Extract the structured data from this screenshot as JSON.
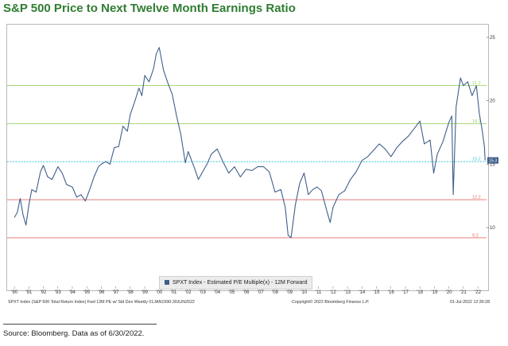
{
  "title": "S&P 500 Price to Next Twelve Month Earnings Ratio",
  "source": "Source: Bloomberg. Data as of 6/30/2022.",
  "footer": {
    "left": "SPXT Index (S&P 500 Total Return Index) Fwd 12M PE w/ Std Dev  Weekly 01JAN1990-30JUN2022",
    "center": "Copyright© 2022 Bloomberg Finance L.P.",
    "right": "01-Jul-2022 12:36:28"
  },
  "colors": {
    "series": "#3f5f8a",
    "green": "#9bd36a",
    "red": "#e46b6b",
    "cyan": "#3cc6d8",
    "title": "#2f7d32"
  },
  "chart_data": {
    "type": "line",
    "title": "S&P 500 Price to Next Twelve Month Earnings Ratio",
    "legend": "SPXT Index - Estimated P/E Multiple(x) - 12M Forward",
    "legend_position": "bottom-center",
    "grid": false,
    "xlim": [
      1989.5,
      2022.6
    ],
    "ylim": [
      6.5,
      26
    ],
    "x_tick_labels": [
      "'90",
      "'91",
      "'92",
      "'93",
      "'94",
      "'95",
      "'96",
      "'97",
      "'98",
      "'99",
      "'00",
      "'01",
      "'02",
      "'03",
      "'04",
      "'05",
      "'06",
      "'07",
      "'08",
      "'09",
      "'10",
      "'11",
      "'12",
      "'13",
      "'14",
      "'15",
      "'16",
      "'17",
      "'18",
      "'19",
      "'20",
      "'21",
      "'22"
    ],
    "x_tick_values": [
      1990,
      1991,
      1992,
      1993,
      1994,
      1995,
      1996,
      1997,
      1998,
      1999,
      2000,
      2001,
      2002,
      2003,
      2004,
      2005,
      2006,
      2007,
      2008,
      2009,
      2010,
      2011,
      2012,
      2013,
      2014,
      2015,
      2016,
      2017,
      2018,
      2019,
      2020,
      2021,
      2022
    ],
    "y_tick_labels": [
      "10",
      "15",
      "20",
      "25"
    ],
    "y_tick_values": [
      10,
      15,
      20,
      25
    ],
    "reference_lines": [
      {
        "value": 21.2,
        "label": "21.2",
        "color": "green"
      },
      {
        "value": 18.2,
        "label": "18.2",
        "color": "green"
      },
      {
        "value": 15.2,
        "label": "15.2",
        "color": "cyan"
      },
      {
        "value": 12.2,
        "label": "12.2",
        "color": "red"
      },
      {
        "value": 9.2,
        "label": "9.2",
        "color": "red"
      }
    ],
    "last_value_label": "15.3",
    "last_value": 15.3,
    "series": [
      {
        "name": "SPXT Index - Estimated P/E Multiple(x) - 12M Forward",
        "x": [
          1990.0,
          1990.2,
          1990.4,
          1990.6,
          1990.8,
          1991.0,
          1991.2,
          1991.5,
          1991.8,
          1992.0,
          1992.3,
          1992.6,
          1993.0,
          1993.3,
          1993.6,
          1994.0,
          1994.3,
          1994.6,
          1994.9,
          1995.2,
          1995.5,
          1995.8,
          1996.0,
          1996.3,
          1996.6,
          1996.9,
          1997.2,
          1997.5,
          1997.8,
          1998.0,
          1998.3,
          1998.6,
          1998.8,
          1999.0,
          1999.3,
          1999.6,
          1999.8,
          2000.0,
          2000.3,
          2000.6,
          2000.9,
          2001.2,
          2001.5,
          2001.8,
          2002.0,
          2002.4,
          2002.7,
          2003.0,
          2003.3,
          2003.6,
          2004.0,
          2004.4,
          2004.8,
          2005.2,
          2005.6,
          2006.0,
          2006.4,
          2006.8,
          2007.2,
          2007.6,
          2008.0,
          2008.4,
          2008.7,
          2008.9,
          2009.1,
          2009.4,
          2009.7,
          2010.0,
          2010.3,
          2010.6,
          2010.9,
          2011.2,
          2011.6,
          2011.8,
          2012.0,
          2012.4,
          2012.8,
          2013.2,
          2013.6,
          2014.0,
          2014.4,
          2014.8,
          2015.2,
          2015.6,
          2016.0,
          2016.4,
          2016.8,
          2017.2,
          2017.6,
          2018.0,
          2018.3,
          2018.7,
          2018.95,
          2019.2,
          2019.6,
          2020.0,
          2020.2,
          2020.3,
          2020.5,
          2020.8,
          2021.0,
          2021.3,
          2021.6,
          2021.9,
          2022.1,
          2022.3,
          2022.45,
          2022.5
        ],
        "y": [
          10.8,
          11.2,
          12.3,
          11.0,
          10.2,
          11.8,
          13.0,
          12.8,
          14.4,
          14.9,
          14.0,
          13.8,
          14.8,
          14.3,
          13.4,
          13.2,
          12.4,
          12.6,
          12.1,
          13.0,
          14.0,
          14.8,
          15.0,
          15.2,
          15.0,
          16.3,
          16.4,
          18.0,
          17.6,
          18.9,
          19.9,
          21.0,
          20.4,
          22.0,
          21.5,
          22.5,
          23.7,
          24.2,
          22.4,
          21.4,
          20.5,
          18.8,
          17.3,
          15.1,
          16.0,
          14.8,
          13.8,
          14.4,
          15.0,
          15.8,
          16.2,
          15.2,
          14.3,
          14.8,
          14.0,
          14.6,
          14.5,
          14.8,
          14.8,
          14.4,
          12.8,
          13.0,
          11.6,
          9.4,
          9.2,
          11.8,
          13.5,
          14.3,
          12.6,
          13.0,
          13.2,
          12.9,
          11.2,
          10.4,
          11.6,
          12.6,
          12.9,
          13.8,
          14.4,
          15.3,
          15.6,
          16.1,
          16.6,
          16.2,
          15.6,
          16.3,
          16.8,
          17.2,
          17.8,
          18.4,
          16.6,
          16.9,
          14.3,
          15.8,
          16.8,
          18.3,
          18.8,
          12.6,
          19.5,
          21.8,
          21.2,
          21.5,
          20.4,
          21.2,
          19.0,
          17.7,
          16.4,
          15.3
        ]
      }
    ]
  }
}
